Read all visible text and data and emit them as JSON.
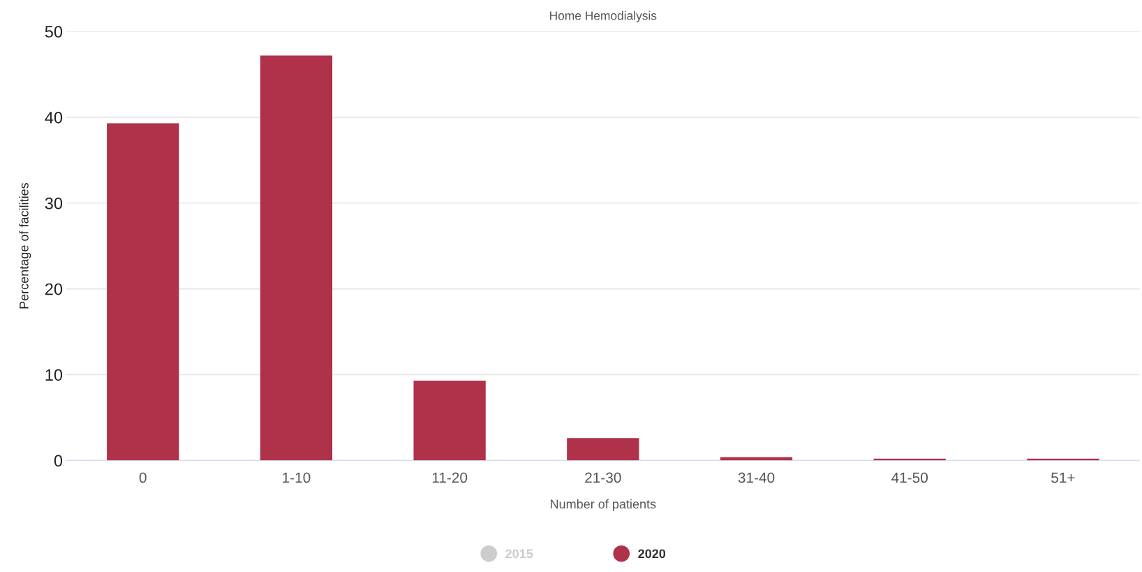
{
  "chart_data": {
    "type": "bar",
    "title": "Home Hemodialysis",
    "xlabel": "Number of patients",
    "ylabel": "Percentage of facilities",
    "categories": [
      "0",
      "1-10",
      "11-20",
      "21-30",
      "31-40",
      "41-50",
      "51+"
    ],
    "series": [
      {
        "name": "2015",
        "color": "#cccccc",
        "values": [
          null,
          null,
          null,
          null,
          null,
          null,
          null
        ]
      },
      {
        "name": "2020",
        "color": "#b0314a",
        "values": [
          39.3,
          47.2,
          9.3,
          2.6,
          0.4,
          0.2,
          0.2
        ]
      }
    ],
    "ylim": [
      0,
      50
    ],
    "yticks": [
      0,
      10,
      20,
      30,
      40,
      50
    ],
    "grid": "y",
    "legend": "bottom"
  }
}
